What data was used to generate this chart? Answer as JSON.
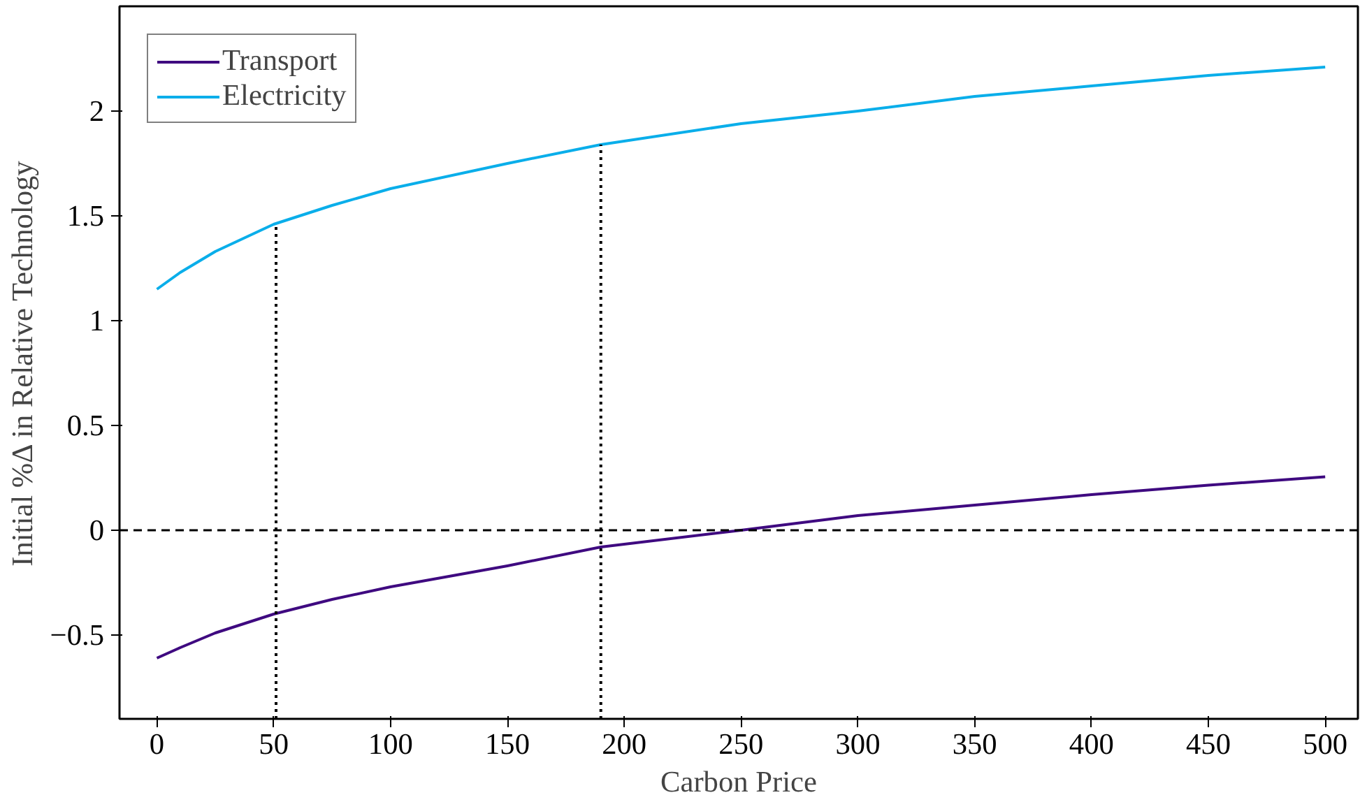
{
  "chart_data": {
    "type": "line",
    "xlabel": "Carbon Price",
    "ylabel": "Initial %Δ in Relative Technology",
    "xlim": [
      -16,
      514
    ],
    "ylim": [
      -0.9,
      2.5
    ],
    "xticks": [
      0,
      50,
      100,
      150,
      200,
      250,
      300,
      350,
      400,
      450,
      500
    ],
    "yticks": [
      {
        "value": -0.5,
        "label": "−0.5"
      },
      0,
      0.5,
      1,
      1.5,
      2
    ],
    "grid": false,
    "legend": "top left",
    "marker": "none",
    "series": [
      {
        "name": "Transport",
        "color": "#3f0a80",
        "x": [
          0,
          10,
          25,
          50,
          75,
          100,
          150,
          190,
          250,
          300,
          350,
          400,
          450,
          500
        ],
        "values": [
          -0.61,
          -0.56,
          -0.49,
          -0.4,
          -0.33,
          -0.27,
          -0.17,
          -0.08,
          0.0,
          0.07,
          0.12,
          0.17,
          0.215,
          0.255
        ]
      },
      {
        "name": "Electricity",
        "color": "#0aaeea",
        "x": [
          0,
          10,
          25,
          50,
          75,
          100,
          150,
          190,
          250,
          300,
          350,
          400,
          450,
          500
        ],
        "values": [
          1.15,
          1.23,
          1.33,
          1.46,
          1.55,
          1.63,
          1.75,
          1.84,
          1.94,
          2.0,
          2.07,
          2.12,
          2.17,
          2.21
        ]
      },
      {
        "type": "line",
        "color": "#000000",
        "line_style": "dotted",
        "x": [
          51,
          51
        ],
        "values": [
          -0.9,
          1.46
        ]
      },
      {
        "type": "line",
        "color": "#000000",
        "line_style": "dotted",
        "x": [
          190,
          190
        ],
        "values": [
          -0.9,
          1.84
        ]
      }
    ],
    "ref_lines": [
      {
        "axis": "y",
        "value": 0,
        "line_style": "dashed",
        "color": "#000000"
      }
    ]
  }
}
